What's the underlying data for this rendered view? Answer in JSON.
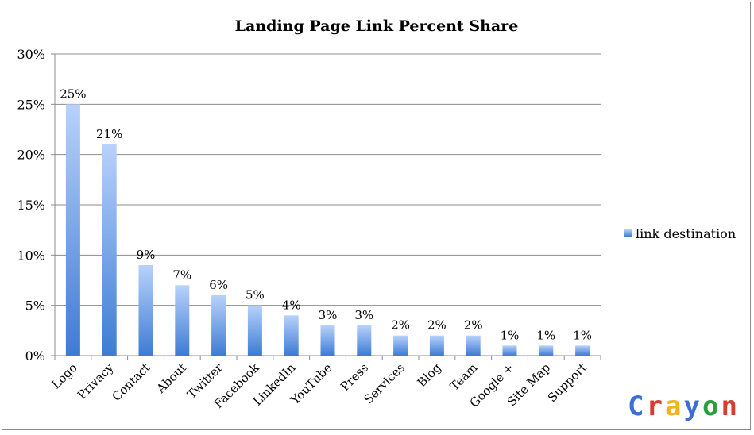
{
  "chart_data": {
    "type": "bar",
    "title": "Landing Page Link Percent Share",
    "categories": [
      "Logo",
      "Privacy",
      "Contact",
      "About",
      "Twitter",
      "Facebook",
      "LinkedIn",
      "YouTube",
      "Press",
      "Services",
      "Blog",
      "Team",
      "Google +",
      "Site Map",
      "Support"
    ],
    "series": [
      {
        "name": "link destination",
        "values": [
          0.25,
          0.21,
          0.09,
          0.07,
          0.06,
          0.05,
          0.04,
          0.03,
          0.03,
          0.02,
          0.02,
          0.02,
          0.01,
          0.01,
          0.01
        ],
        "labels": [
          "25%",
          "21%",
          "9%",
          "7%",
          "6%",
          "5%",
          "4%",
          "3%",
          "3%",
          "2%",
          "2%",
          "2%",
          "1%",
          "1%",
          "1%"
        ]
      }
    ],
    "yticks": [
      "0%",
      "5%",
      "10%",
      "15%",
      "20%",
      "25%",
      "30%"
    ],
    "ylim": [
      0,
      0.3
    ],
    "grid": true,
    "legend_position": "right",
    "colors": {
      "bar_top": "#b8d2fb",
      "bar_bottom": "#3d7bd4",
      "grid": "#8c8c8c"
    }
  },
  "logo": {
    "letters": [
      "C",
      "r",
      "a",
      "y",
      "o",
      "n"
    ],
    "colors": [
      "#3b6fd6",
      "#d83b2f",
      "#f2b21b",
      "#3b6fd6",
      "#2a9d3e",
      "#d83b2f"
    ]
  }
}
